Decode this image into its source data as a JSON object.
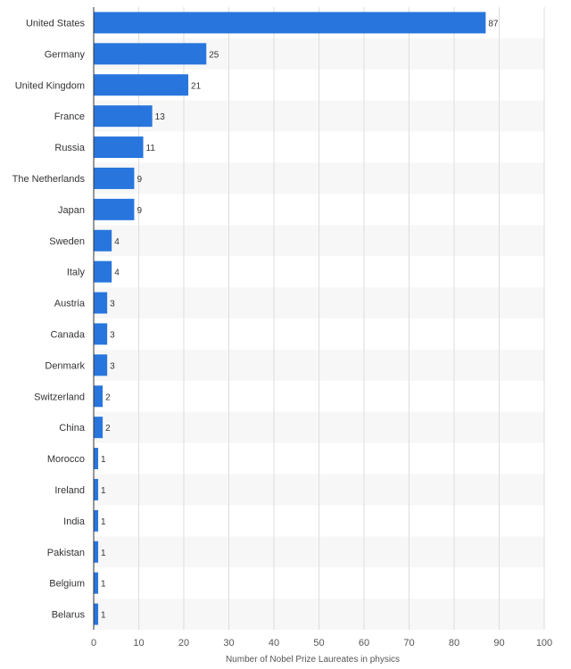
{
  "chart_data": {
    "type": "bar",
    "orientation": "horizontal",
    "categories": [
      "United States",
      "Germany",
      "United Kingdom",
      "France",
      "Russia",
      "The Netherlands",
      "Japan",
      "Sweden",
      "Italy",
      "Austria",
      "Canada",
      "Denmark",
      "Switzerland",
      "China",
      "Morocco",
      "Ireland",
      "India",
      "Pakistan",
      "Belgium",
      "Belarus"
    ],
    "values": [
      87,
      25,
      21,
      13,
      11,
      9,
      9,
      4,
      4,
      3,
      3,
      3,
      2,
      2,
      1,
      1,
      1,
      1,
      1,
      1
    ],
    "xlabel": "Number of Nobel Prize Laureates in physics",
    "ylabel": "",
    "xlim": [
      0,
      100
    ],
    "xticks": [
      0,
      10,
      20,
      30,
      40,
      50,
      60,
      70,
      80,
      90,
      100
    ],
    "grid": true,
    "data_labels": true,
    "bar_color": "#2876dd",
    "alt_band_color": "#f7f7f7"
  }
}
